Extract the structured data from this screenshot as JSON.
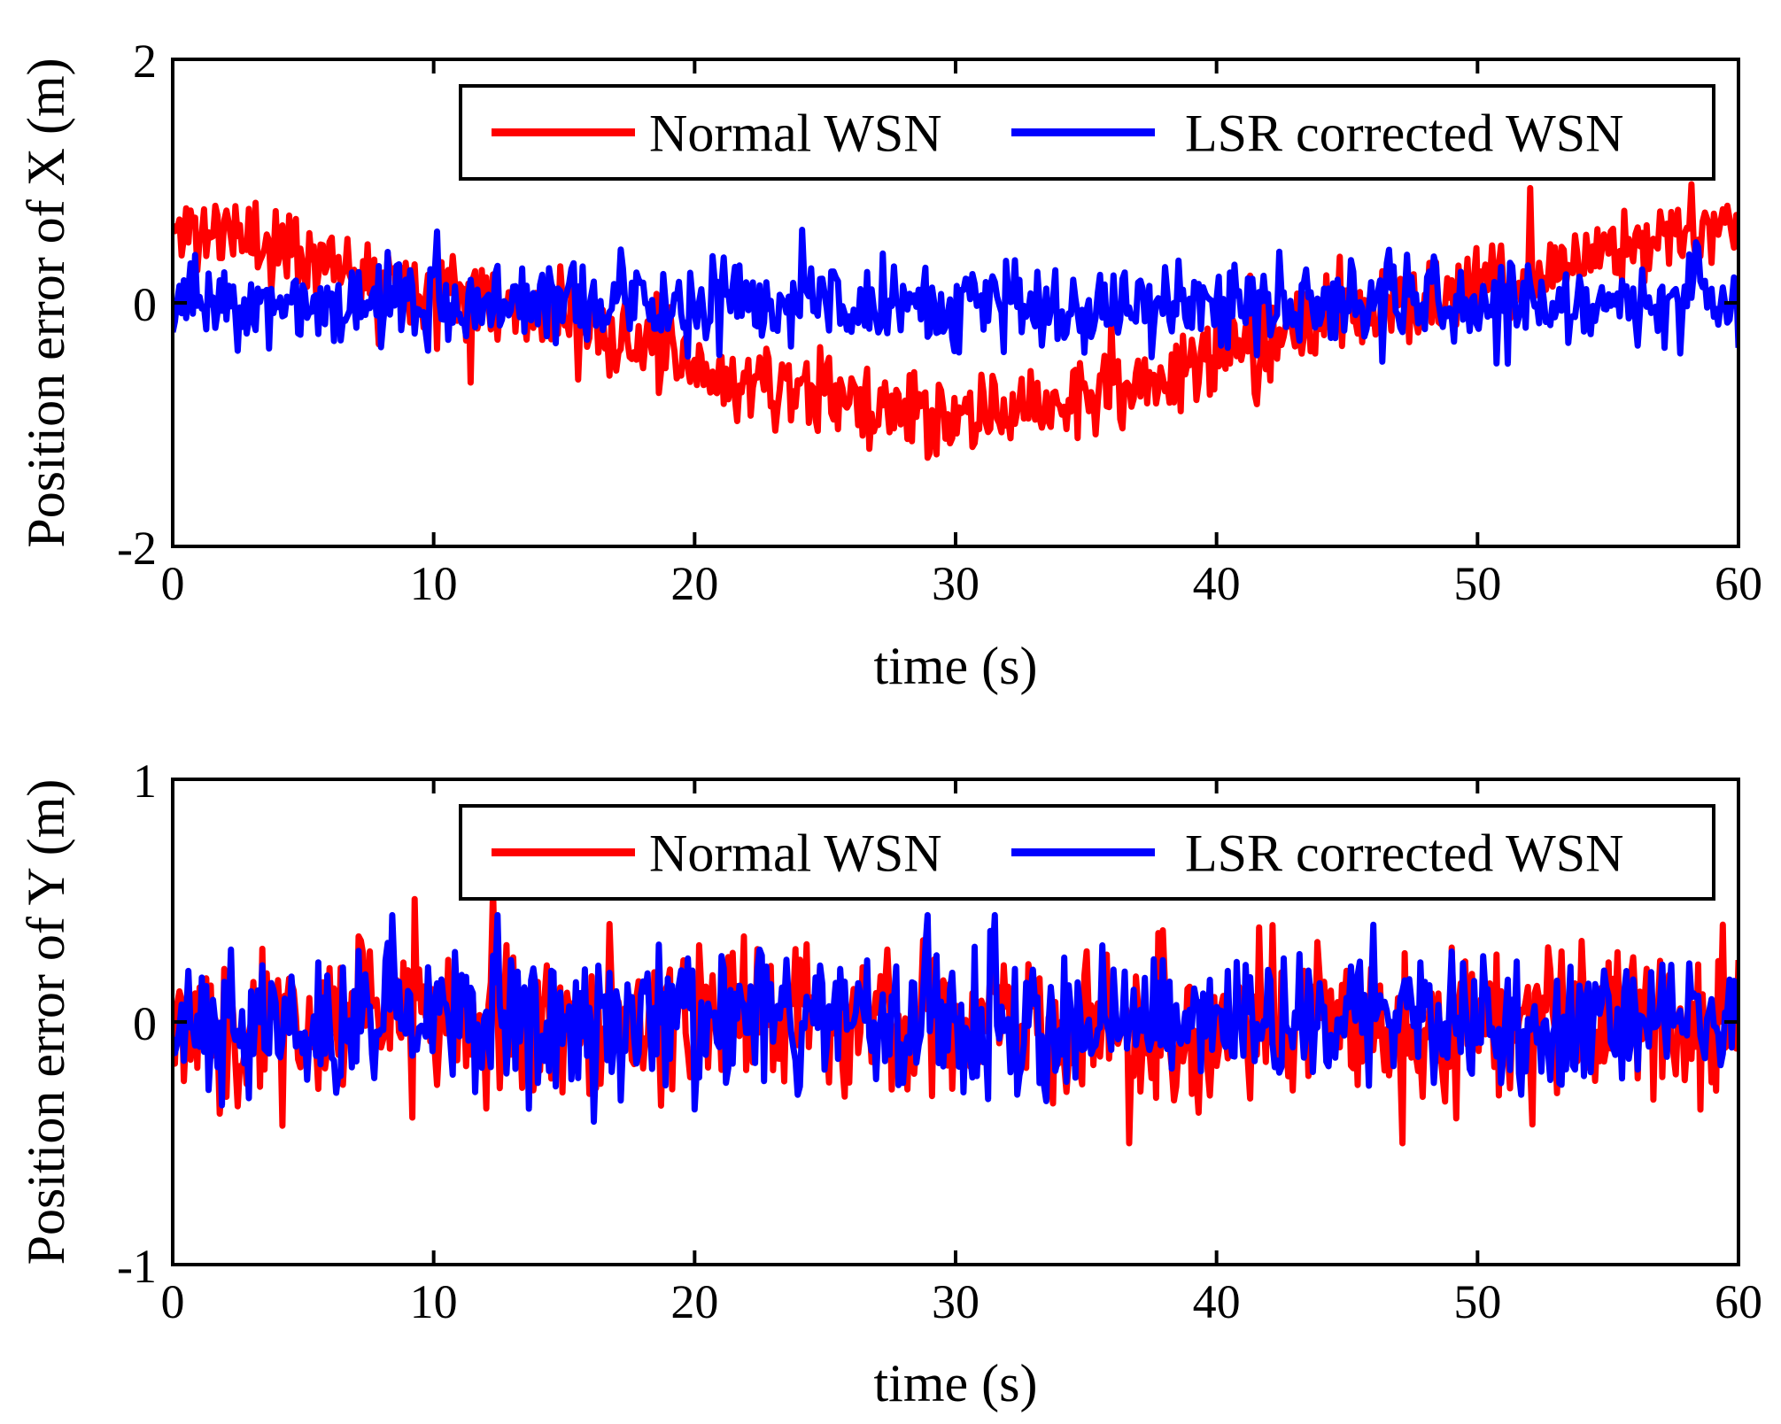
{
  "chart_data": [
    {
      "type": "line",
      "id": "x",
      "xlabel": "time (s)",
      "ylabel": "Position error of X (m)",
      "xlim": [
        0,
        60
      ],
      "ylim": [
        -2,
        2
      ],
      "xticks": [
        "0",
        "10",
        "20",
        "30",
        "40",
        "50",
        "60"
      ],
      "yticks": [
        "-2",
        "0",
        "2"
      ],
      "legend": {
        "location": "top-right",
        "entries": [
          "Normal WSN",
          "LSR corrected WSN"
        ]
      },
      "series": [
        {
          "name": "Normal WSN",
          "color": "#ff0000",
          "x": [
            0,
            2,
            4,
            6,
            8,
            10,
            12,
            14,
            16,
            18,
            20,
            22,
            24,
            26,
            28,
            30,
            32,
            34,
            36,
            38,
            40,
            42,
            44,
            46,
            48,
            50,
            52,
            54,
            56,
            58,
            60
          ],
          "trend": [
            0.6,
            0.58,
            0.47,
            0.36,
            0.25,
            0.15,
            0.08,
            -0.05,
            -0.2,
            -0.4,
            -0.58,
            -0.65,
            -0.72,
            -0.82,
            -0.88,
            -1.0,
            -0.88,
            -0.8,
            -0.72,
            -0.6,
            -0.48,
            -0.3,
            -0.16,
            -0.05,
            0.02,
            0.12,
            0.18,
            0.35,
            0.45,
            0.6,
            0.7
          ],
          "noise": 0.16,
          "n_samples": 700,
          "min": -1.4,
          "max": 1.05
        },
        {
          "name": "LSR corrected WSN",
          "color": "#0000ff",
          "x": [
            0,
            60
          ],
          "trend": [
            0,
            0
          ],
          "noise": 0.17,
          "n_samples": 700,
          "min": -0.6,
          "max": 0.6
        }
      ]
    },
    {
      "type": "line",
      "id": "y",
      "xlabel": "time (s)",
      "ylabel": "Position error of Y (m)",
      "xlim": [
        0,
        60
      ],
      "ylim": [
        -1,
        1
      ],
      "xticks": [
        "0",
        "10",
        "20",
        "30",
        "40",
        "50",
        "60"
      ],
      "yticks": [
        "-1",
        "0",
        "1"
      ],
      "legend": {
        "location": "top-right",
        "entries": [
          "Normal WSN",
          "LSR corrected WSN"
        ]
      },
      "series": [
        {
          "name": "Normal WSN",
          "color": "#ff0000",
          "x": [
            0,
            60
          ],
          "trend": [
            0,
            0
          ],
          "noise": 0.16,
          "n_samples": 700,
          "min": -0.5,
          "max": 0.58
        },
        {
          "name": "LSR corrected WSN",
          "color": "#0000ff",
          "x": [
            0,
            60
          ],
          "trend": [
            0,
            0
          ],
          "noise": 0.14,
          "n_samples": 700,
          "min": -0.42,
          "max": 0.44
        }
      ]
    }
  ]
}
